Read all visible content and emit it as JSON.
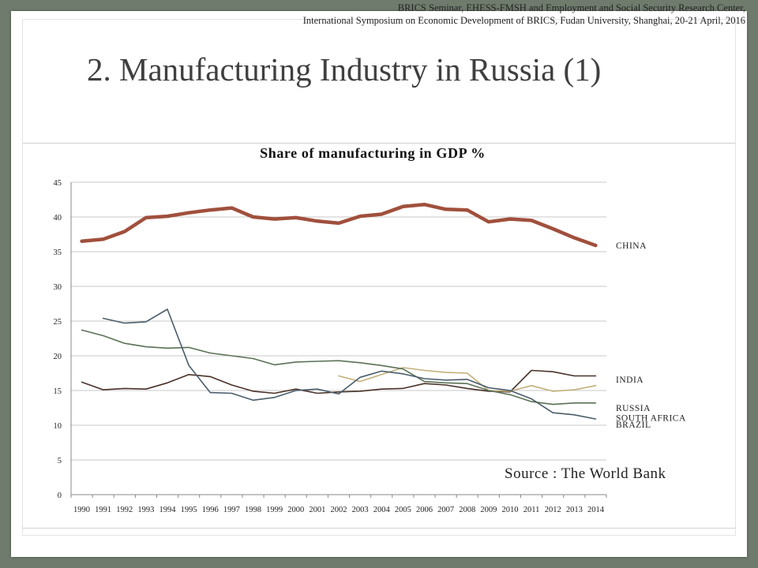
{
  "header": {
    "seminar_line1": "BRICS Seminar, EHESS-FMSH and Employment and Social Security Research Center,",
    "seminar_line2": "International Symposium on Economic Development of BRICS, Fudan University, Shanghai, 20-21 April, 2016"
  },
  "slide_title": "2. Manufacturing Industry in Russia (1)",
  "source": "Source : The World Bank",
  "chart_data": {
    "type": "line",
    "title": "Share of manufacturing in GDP %",
    "xlabel": "",
    "ylabel": "",
    "ylim": [
      0,
      45
    ],
    "yticks": [
      0,
      5,
      10,
      15,
      20,
      25,
      30,
      35,
      40,
      45
    ],
    "grid": true,
    "legend": "inline labels at right end of each series",
    "x": [
      "1990",
      "1991",
      "1992",
      "1993",
      "1994",
      "1995",
      "1996",
      "1997",
      "1998",
      "1999",
      "2000",
      "2001",
      "2002",
      "2003",
      "2004",
      "2005",
      "2006",
      "2007",
      "2008",
      "2009",
      "2010",
      "2011",
      "2012",
      "2013",
      "2014"
    ],
    "series": [
      {
        "name": "CHINA",
        "color": "#a0503c",
        "width": 4.5,
        "values": [
          36.5,
          36.8,
          37.9,
          39.9,
          40.1,
          40.6,
          41.0,
          41.3,
          40.0,
          39.7,
          39.9,
          39.4,
          39.1,
          40.1,
          40.4,
          41.5,
          41.8,
          41.1,
          41.0,
          39.3,
          39.7,
          39.5,
          38.3,
          37.0,
          35.9
        ]
      },
      {
        "name": "INDIA",
        "color": "#4a3228",
        "width": 1.6,
        "values": [
          16.2,
          15.1,
          15.3,
          15.2,
          16.1,
          17.3,
          17.0,
          15.8,
          14.9,
          14.6,
          15.2,
          14.6,
          14.8,
          14.9,
          15.2,
          15.3,
          16.0,
          15.8,
          15.3,
          14.9,
          14.8,
          17.9,
          17.7,
          17.1,
          17.1
        ]
      },
      {
        "name": "RUSSIA",
        "color": "#c2b07a",
        "width": 1.6,
        "values": [
          null,
          null,
          null,
          null,
          null,
          null,
          null,
          null,
          null,
          null,
          null,
          null,
          17.1,
          16.3,
          17.3,
          18.3,
          17.9,
          17.6,
          17.5,
          15.0,
          14.9,
          15.7,
          14.9,
          15.1,
          15.7
        ]
      },
      {
        "name": "SOUTH AFRICA",
        "color": "#5a7256",
        "width": 1.6,
        "values": [
          23.7,
          22.9,
          21.8,
          21.3,
          21.1,
          21.2,
          20.4,
          20.0,
          19.6,
          18.7,
          19.1,
          19.2,
          19.3,
          19.0,
          18.6,
          18.1,
          16.3,
          16.1,
          16.0,
          15.0,
          14.4,
          13.4,
          13.0,
          13.2,
          13.2
        ]
      },
      {
        "name": "BRAZIL",
        "color": "#4a5d6a",
        "width": 1.6,
        "values": [
          null,
          25.4,
          24.7,
          24.9,
          26.7,
          18.6,
          14.7,
          14.6,
          13.6,
          14.0,
          15.0,
          15.2,
          14.5,
          16.9,
          17.8,
          17.4,
          16.7,
          16.5,
          16.6,
          15.4,
          15.0,
          13.8,
          11.8,
          11.5,
          10.9
        ]
      }
    ]
  }
}
